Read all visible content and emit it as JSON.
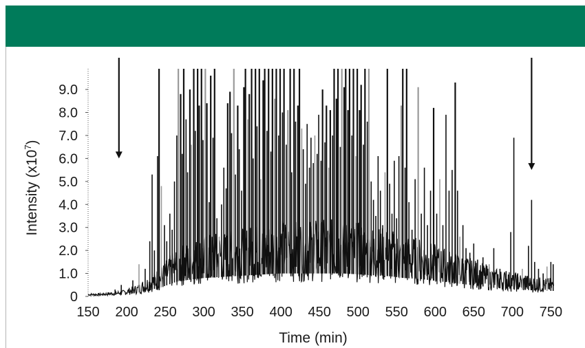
{
  "header": {
    "color": "#007b5a"
  },
  "chart_data": {
    "type": "line",
    "title": "",
    "xlabel": "Time (min)",
    "ylabel_main": "Intensity (x10",
    "ylabel_exp": "7",
    "ylabel_close": ")",
    "xlim": [
      150,
      755
    ],
    "ylim": [
      0,
      9.9
    ],
    "x_ticks": [
      150,
      200,
      250,
      300,
      350,
      400,
      450,
      500,
      550,
      600,
      650,
      700,
      750
    ],
    "x_tick_labels": [
      "150",
      "200",
      "250",
      "300",
      "350",
      "400",
      "450",
      "500",
      "550",
      "600",
      "650",
      "700",
      "750"
    ],
    "y_ticks": [
      0,
      1,
      2,
      3,
      4,
      5,
      6,
      7,
      8,
      9
    ],
    "y_tick_labels": [
      "0",
      "1.0",
      "2.0",
      "3.0",
      "4.0",
      "5.0",
      "6.0",
      "7.0",
      "8.0",
      "9.0"
    ],
    "grid": false,
    "colors": {
      "trace": "#111111",
      "trace_light": "#9a9a9a",
      "axis": "#555555"
    },
    "annotations": [
      {
        "type": "arrow-down",
        "x": 190,
        "y_from": 9.9,
        "y_to": 6.0
      },
      {
        "type": "arrow-down",
        "x": 725,
        "y_from": 9.9,
        "y_to": 5.5
      }
    ],
    "baseline": {
      "x": [
        150,
        165,
        180,
        195,
        205,
        215,
        225,
        235,
        245,
        255,
        265,
        280,
        300,
        320,
        340,
        360,
        380,
        400,
        420,
        440,
        460,
        480,
        500,
        520,
        540,
        560,
        580,
        600,
        620,
        640,
        660,
        680,
        700,
        720,
        740,
        755
      ],
      "y": [
        0.1,
        0.1,
        0.15,
        0.2,
        0.3,
        0.4,
        0.6,
        0.8,
        1.0,
        1.3,
        1.6,
        1.8,
        2.0,
        2.1,
        2.2,
        2.3,
        2.4,
        2.5,
        2.5,
        2.5,
        2.5,
        2.5,
        2.4,
        2.3,
        2.2,
        2.0,
        1.9,
        1.7,
        1.5,
        1.3,
        1.1,
        0.9,
        0.8,
        0.7,
        0.6,
        0.6
      ]
    },
    "peaks": [
      [
        185,
        0.3
      ],
      [
        193,
        0.5
      ],
      [
        208,
        0.7
      ],
      [
        216,
        1.4
      ],
      [
        224,
        1.2
      ],
      [
        230,
        2.4
      ],
      [
        233,
        5.3
      ],
      [
        236,
        2.0
      ],
      [
        240,
        6.1
      ],
      [
        242,
        9.9
      ],
      [
        245,
        4.8
      ],
      [
        249,
        3.1
      ],
      [
        252,
        2.4
      ],
      [
        256,
        3.6
      ],
      [
        259,
        2.9
      ],
      [
        262,
        5.0
      ],
      [
        265,
        7.0
      ],
      [
        267,
        9.9
      ],
      [
        270,
        8.8
      ],
      [
        272,
        6.2
      ],
      [
        274,
        9.9
      ],
      [
        277,
        7.7
      ],
      [
        279,
        5.4
      ],
      [
        282,
        9.0
      ],
      [
        284,
        6.6
      ],
      [
        287,
        9.9
      ],
      [
        289,
        7.2
      ],
      [
        292,
        9.9
      ],
      [
        294,
        8.3
      ],
      [
        297,
        9.9
      ],
      [
        299,
        6.8
      ],
      [
        302,
        9.9
      ],
      [
        304,
        8.4
      ],
      [
        307,
        4.1
      ],
      [
        309,
        9.6
      ],
      [
        312,
        6.9
      ],
      [
        314,
        9.9
      ],
      [
        317,
        3.4
      ],
      [
        320,
        2.6
      ],
      [
        323,
        4.0
      ],
      [
        326,
        5.6
      ],
      [
        329,
        4.7
      ],
      [
        331,
        8.4
      ],
      [
        334,
        8.9
      ],
      [
        336,
        7.1
      ],
      [
        339,
        9.9
      ],
      [
        341,
        5.3
      ],
      [
        344,
        8.3
      ],
      [
        346,
        6.4
      ],
      [
        349,
        4.6
      ],
      [
        352,
        9.1
      ],
      [
        354,
        9.9
      ],
      [
        357,
        7.7
      ],
      [
        359,
        8.8
      ],
      [
        362,
        9.9
      ],
      [
        364,
        6.0
      ],
      [
        367,
        9.9
      ],
      [
        369,
        7.4
      ],
      [
        372,
        9.9
      ],
      [
        374,
        5.1
      ],
      [
        377,
        9.4
      ],
      [
        379,
        9.9
      ],
      [
        382,
        7.2
      ],
      [
        384,
        9.9
      ],
      [
        387,
        6.3
      ],
      [
        389,
        9.9
      ],
      [
        392,
        8.6
      ],
      [
        394,
        9.9
      ],
      [
        397,
        7.0
      ],
      [
        399,
        9.9
      ],
      [
        402,
        8.0
      ],
      [
        404,
        9.9
      ],
      [
        407,
        6.6
      ],
      [
        409,
        8.1
      ],
      [
        412,
        9.9
      ],
      [
        414,
        5.4
      ],
      [
        417,
        9.9
      ],
      [
        419,
        7.6
      ],
      [
        422,
        8.3
      ],
      [
        424,
        9.9
      ],
      [
        427,
        7.3
      ],
      [
        429,
        6.4
      ],
      [
        432,
        4.9
      ],
      [
        434,
        7.5
      ],
      [
        437,
        5.6
      ],
      [
        439,
        6.9
      ],
      [
        442,
        5.8
      ],
      [
        444,
        7.0
      ],
      [
        447,
        6.2
      ],
      [
        449,
        7.9
      ],
      [
        452,
        5.9
      ],
      [
        454,
        9.0
      ],
      [
        457,
        6.7
      ],
      [
        459,
        8.3
      ],
      [
        462,
        5.6
      ],
      [
        464,
        8.1
      ],
      [
        467,
        7.0
      ],
      [
        469,
        9.9
      ],
      [
        472,
        8.6
      ],
      [
        474,
        9.9
      ],
      [
        477,
        6.5
      ],
      [
        479,
        9.9
      ],
      [
        482,
        9.1
      ],
      [
        484,
        9.9
      ],
      [
        487,
        8.1
      ],
      [
        489,
        9.9
      ],
      [
        492,
        7.0
      ],
      [
        494,
        9.9
      ],
      [
        497,
        6.1
      ],
      [
        499,
        9.9
      ],
      [
        502,
        8.1
      ],
      [
        504,
        9.2
      ],
      [
        507,
        6.6
      ],
      [
        509,
        9.9
      ],
      [
        512,
        7.6
      ],
      [
        514,
        9.9
      ],
      [
        517,
        5.0
      ],
      [
        520,
        4.2
      ],
      [
        523,
        3.5
      ],
      [
        526,
        6.1
      ],
      [
        529,
        4.6
      ],
      [
        532,
        3.1
      ],
      [
        535,
        5.4
      ],
      [
        538,
        9.9
      ],
      [
        541,
        4.9
      ],
      [
        544,
        3.6
      ],
      [
        547,
        5.9
      ],
      [
        550,
        3.4
      ],
      [
        553,
        6.1
      ],
      [
        556,
        8.3
      ],
      [
        558,
        9.9
      ],
      [
        561,
        5.6
      ],
      [
        563,
        9.9
      ],
      [
        566,
        4.1
      ],
      [
        570,
        2.9
      ],
      [
        574,
        5.1
      ],
      [
        578,
        9.1
      ],
      [
        582,
        3.6
      ],
      [
        586,
        5.6
      ],
      [
        590,
        3.1
      ],
      [
        594,
        4.6
      ],
      [
        598,
        8.2
      ],
      [
        602,
        3.6
      ],
      [
        606,
        5.1
      ],
      [
        610,
        3.1
      ],
      [
        614,
        7.9
      ],
      [
        618,
        4.6
      ],
      [
        622,
        5.5
      ],
      [
        626,
        9.3
      ],
      [
        629,
        4.6
      ],
      [
        632,
        2.6
      ],
      [
        636,
        3.1
      ],
      [
        640,
        2.1
      ],
      [
        645,
        1.9
      ],
      [
        650,
        2.3
      ],
      [
        655,
        1.6
      ],
      [
        662,
        1.7
      ],
      [
        670,
        1.4
      ],
      [
        676,
        2.1
      ],
      [
        684,
        1.2
      ],
      [
        692,
        1.1
      ],
      [
        698,
        2.8
      ],
      [
        702,
        6.9
      ],
      [
        707,
        1.0
      ],
      [
        713,
        1.2
      ],
      [
        717,
        0.9
      ],
      [
        721,
        2.2
      ],
      [
        725,
        4.2
      ],
      [
        729,
        1.5
      ],
      [
        734,
        1.2
      ],
      [
        740,
        1.0
      ],
      [
        745,
        1.3
      ],
      [
        750,
        1.5
      ],
      [
        753,
        1.4
      ]
    ]
  }
}
